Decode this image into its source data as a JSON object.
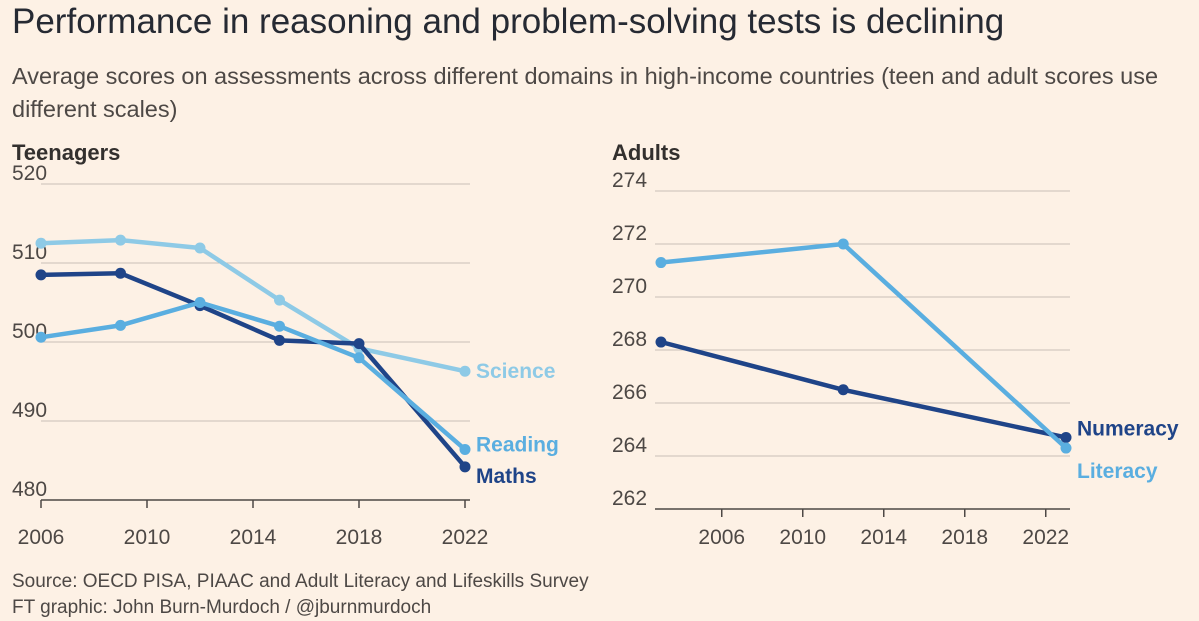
{
  "title": "Performance in reasoning and problem-solving tests is declining",
  "subtitle": "Average scores on assessments across different domains in high-income countries (teen and adult scores use different scales)",
  "source": {
    "line1": "Source: OECD PISA, PIAAC and Adult Literacy and Lifeskills Survey",
    "line2": "FT graphic: John Burn-Murdoch / @jburnmurdoch"
  },
  "colors": {
    "science": "#8ecae6",
    "reading": "#5aaee0",
    "maths": "#1f4488",
    "numeracy": "#1f4488",
    "literacy": "#5aaee0",
    "grid": "#c9c0b8",
    "background": "#fdf1e5"
  },
  "chart_data": [
    {
      "type": "line",
      "title": "Teenagers",
      "xlabel": "",
      "ylabel": "",
      "xlim": [
        2006,
        2022
      ],
      "ylim": [
        480,
        520
      ],
      "yticks": [
        480,
        490,
        500,
        510,
        520
      ],
      "xticks": [
        2006,
        2010,
        2014,
        2018,
        2022
      ],
      "series": [
        {
          "name": "Science",
          "color": "#8ecae6",
          "points": [
            [
              2006,
              512.5
            ],
            [
              2009,
              512.9
            ],
            [
              2012,
              511.9
            ],
            [
              2015,
              505.3
            ],
            [
              2018,
              499.2
            ],
            [
              2022,
              496.3
            ]
          ]
        },
        {
          "name": "Maths",
          "color": "#1f4488",
          "points": [
            [
              2006,
              508.5
            ],
            [
              2009,
              508.7
            ],
            [
              2012,
              504.6
            ],
            [
              2015,
              500.2
            ],
            [
              2018,
              499.8
            ],
            [
              2022,
              484.2
            ]
          ]
        },
        {
          "name": "Reading",
          "color": "#5aaee0",
          "points": [
            [
              2006,
              500.6
            ],
            [
              2009,
              502.1
            ],
            [
              2012,
              505.0
            ],
            [
              2015,
              502.0
            ],
            [
              2018,
              498.0
            ],
            [
              2022,
              486.4
            ]
          ]
        }
      ]
    },
    {
      "type": "line",
      "title": "Adults",
      "xlabel": "",
      "ylabel": "",
      "xlim": [
        2003,
        2023
      ],
      "ylim": [
        262,
        274
      ],
      "yticks": [
        262,
        264,
        266,
        268,
        270,
        272,
        274
      ],
      "xticks": [
        2006,
        2010,
        2014,
        2018,
        2022
      ],
      "series": [
        {
          "name": "Numeracy",
          "color": "#1f4488",
          "points": [
            [
              2003,
              268.3
            ],
            [
              2012,
              266.5
            ],
            [
              2023,
              264.7
            ]
          ]
        },
        {
          "name": "Literacy",
          "color": "#5aaee0",
          "points": [
            [
              2003,
              271.3
            ],
            [
              2012,
              272.0
            ],
            [
              2023,
              264.3
            ]
          ]
        }
      ]
    }
  ]
}
